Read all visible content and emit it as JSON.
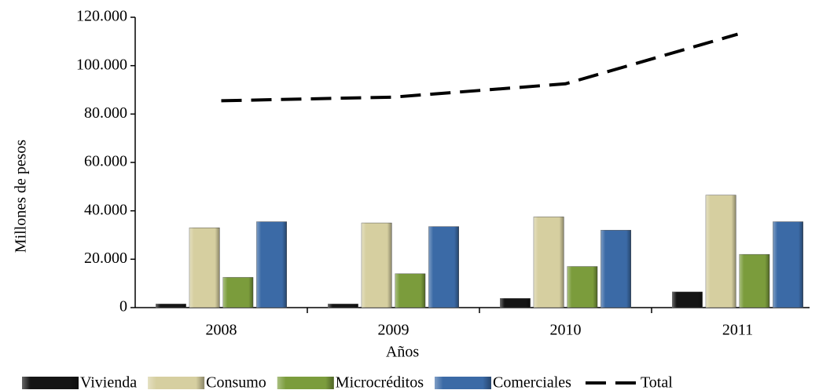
{
  "chart_data": {
    "type": "bar_line",
    "y_label": "Millones de pesos",
    "x_label": "Años",
    "categories": [
      "2008",
      "2009",
      "2010",
      "2011"
    ],
    "series": [
      {
        "name": "Vivienda",
        "color": "#151515",
        "values": [
          1500,
          1500,
          3800,
          6500
        ]
      },
      {
        "name": "Consumo",
        "color": "#d6cfa0",
        "values": [
          33000,
          35000,
          37500,
          46500
        ]
      },
      {
        "name": "Microcréditos",
        "color": "#7b9c3c",
        "values": [
          12500,
          14000,
          17000,
          22000
        ]
      },
      {
        "name": "Comerciales",
        "color": "#3b6aa6",
        "values": [
          35500,
          33500,
          32000,
          35500
        ]
      },
      {
        "name": "Total",
        "color": "#000000",
        "type": "line",
        "dashed": true,
        "values": [
          85500,
          87000,
          92500,
          113000
        ]
      }
    ],
    "ylim": [
      0,
      120000
    ],
    "yticks": [
      0,
      {
        "value": 20000,
        "label": "20.000"
      },
      {
        "value": 40000,
        "label": "40.000"
      },
      {
        "value": 60000,
        "label": "60.000"
      },
      {
        "value": 80000,
        "label": "80.000"
      },
      {
        "value": 100000,
        "label": "100.000"
      },
      {
        "value": 120000,
        "label": "120.000"
      }
    ],
    "legend": "bottom"
  }
}
